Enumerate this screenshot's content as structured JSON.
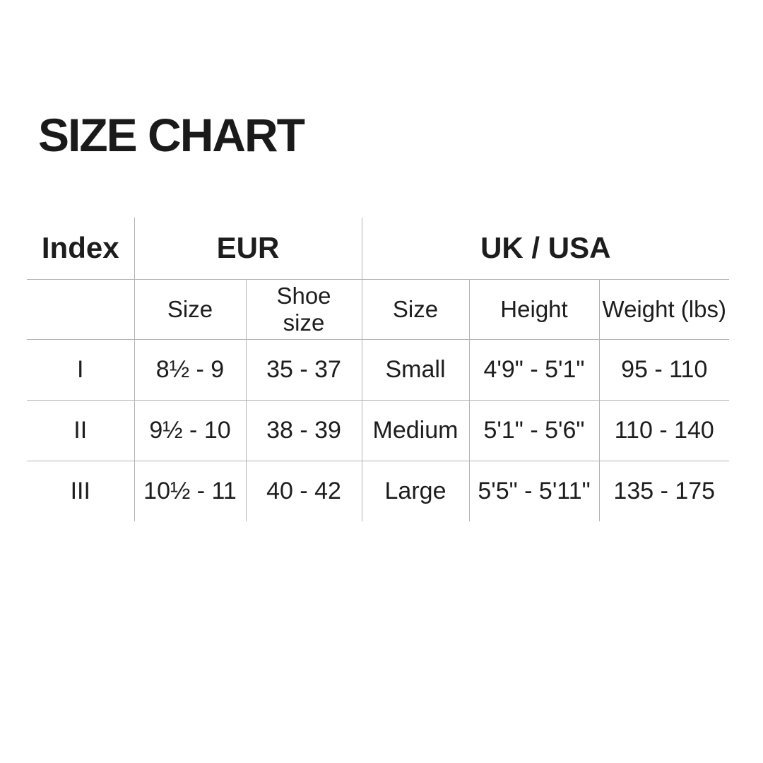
{
  "title": "SIZE CHART",
  "colors": {
    "background": "#ffffff",
    "text": "#1d1d1d",
    "grid_line": "#b3b3b3"
  },
  "chart_data": {
    "type": "table",
    "title": "SIZE CHART",
    "layout": {
      "grid": "internal lines only, no outer border",
      "grid_color": "#b3b3b3"
    },
    "group_headers": [
      {
        "label": "Index",
        "span": 1
      },
      {
        "label": "EUR",
        "span": 2
      },
      {
        "label": "UK / USA",
        "span": 3
      }
    ],
    "sub_headers": [
      "",
      "Size",
      "Shoe size",
      "Size",
      "Height",
      "Weight (lbs)"
    ],
    "rows": [
      {
        "index": "I",
        "eur_size": "8½ - 9",
        "eur_shoe_size": "35 - 37",
        "uk_size": "Small",
        "uk_height": "4'9\" - 5'1\"",
        "uk_weight": "95 - 110"
      },
      {
        "index": "II",
        "eur_size": "9½ - 10",
        "eur_shoe_size": "38 - 39",
        "uk_size": "Medium",
        "uk_height": "5'1\" - 5'6\"",
        "uk_weight": "110 - 140"
      },
      {
        "index": "III",
        "eur_size": "10½ - 11",
        "eur_shoe_size": "40 - 42",
        "uk_size": "Large",
        "uk_height": "5'5\" - 5'11\"",
        "uk_weight": "135 - 175"
      }
    ]
  }
}
